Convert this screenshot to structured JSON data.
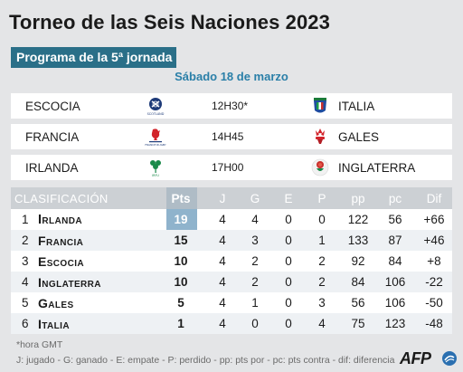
{
  "title": "Torneo de las Seis Naciones 2023",
  "subtitle": "Programa de la 5ª jornada",
  "date": "Sábado 18 de marzo",
  "fixtures": [
    {
      "home": "ESCOCIA",
      "time": "12H30*",
      "away": "ITALIA",
      "home_logo": "scotland-rugby-logo",
      "away_logo": "italy-rugby-logo",
      "home_logo_text": "SCOTLAND"
    },
    {
      "home": "FRANCIA",
      "time": "14H45",
      "away": "GALES",
      "home_logo": "france-rugby-logo",
      "away_logo": "wales-rugby-logo",
      "home_logo_text": "FRANCE RUGBY"
    },
    {
      "home": "IRLANDA",
      "time": "17H00",
      "away": "INGLATERRA",
      "home_logo": "ireland-rugby-logo",
      "away_logo": "england-rugby-logo",
      "home_logo_text": "IRFU"
    }
  ],
  "standings": {
    "headers": {
      "clasificacion": "CLASIFICACIÓN",
      "pts": "Pts",
      "j": "J",
      "g": "G",
      "e": "E",
      "p": "P",
      "pp": "pp",
      "pc": "pc",
      "dif": "Dif"
    },
    "rows": [
      {
        "rank": "1",
        "team": "Irlanda",
        "pts": "19",
        "j": "4",
        "g": "4",
        "e": "0",
        "p": "0",
        "pp": "122",
        "pc": "56",
        "dif": "+66"
      },
      {
        "rank": "2",
        "team": "Francia",
        "pts": "15",
        "j": "4",
        "g": "3",
        "e": "0",
        "p": "1",
        "pp": "133",
        "pc": "87",
        "dif": "+46"
      },
      {
        "rank": "3",
        "team": "Escocia",
        "pts": "10",
        "j": "4",
        "g": "2",
        "e": "0",
        "p": "2",
        "pp": "92",
        "pc": "84",
        "dif": "+8"
      },
      {
        "rank": "4",
        "team": "Inglaterra",
        "pts": "10",
        "j": "4",
        "g": "2",
        "e": "0",
        "p": "2",
        "pp": "84",
        "pc": "106",
        "dif": "-22"
      },
      {
        "rank": "5",
        "team": "Gales",
        "pts": "5",
        "j": "4",
        "g": "1",
        "e": "0",
        "p": "3",
        "pp": "56",
        "pc": "106",
        "dif": "-50"
      },
      {
        "rank": "6",
        "team": "Italia",
        "pts": "1",
        "j": "4",
        "g": "0",
        "e": "0",
        "p": "4",
        "pp": "75",
        "pc": "123",
        "dif": "-48"
      }
    ]
  },
  "note": "*hora GMT",
  "legend": "J: jugado - G: ganado - E: empate - P: perdido - pp: pts por - pc: pts contra - dif: diferencia",
  "credit": "AFP",
  "colors": {
    "accent": "#2a6f88",
    "date": "#2a7fa8",
    "background": "#e4e5e7"
  }
}
